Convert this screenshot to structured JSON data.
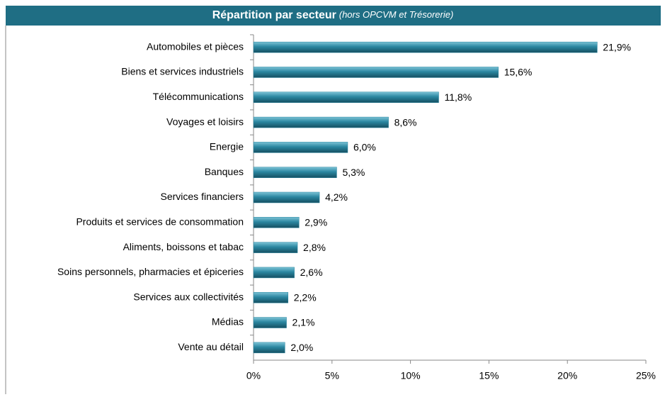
{
  "chart_data": {
    "type": "bar",
    "orientation": "horizontal",
    "title": "Répartition par secteur",
    "subtitle": "(hors OPCVM et Trésorerie)",
    "categories": [
      "Automobiles et pièces",
      "Biens et services industriels",
      "Télécommunications",
      "Voyages et loisirs",
      "Energie",
      "Banques",
      "Services financiers",
      "Produits et services de consommation",
      "Aliments, boissons et tabac",
      "Soins personnels, pharmacies et épiceries",
      "Services aux collectivités",
      "Médias",
      "Vente au détail"
    ],
    "values": [
      21.9,
      15.6,
      11.8,
      8.6,
      6.0,
      5.3,
      4.2,
      2.9,
      2.8,
      2.6,
      2.2,
      2.1,
      2.0
    ],
    "value_labels": [
      "21,9%",
      "15,6%",
      "11,8%",
      "8,6%",
      "6,0%",
      "5,3%",
      "4,2%",
      "2,9%",
      "2,8%",
      "2,6%",
      "2,2%",
      "2,1%",
      "2,0%"
    ],
    "color": "#2a86a0",
    "xlim": [
      0,
      25
    ],
    "xticks": [
      {
        "value": 0,
        "label": "0%"
      },
      {
        "value": 5,
        "label": "5%"
      },
      {
        "value": 10,
        "label": "10%"
      },
      {
        "value": 15,
        "label": "15%"
      },
      {
        "value": 20,
        "label": "20%"
      },
      {
        "value": 25,
        "label": "25%"
      }
    ]
  }
}
